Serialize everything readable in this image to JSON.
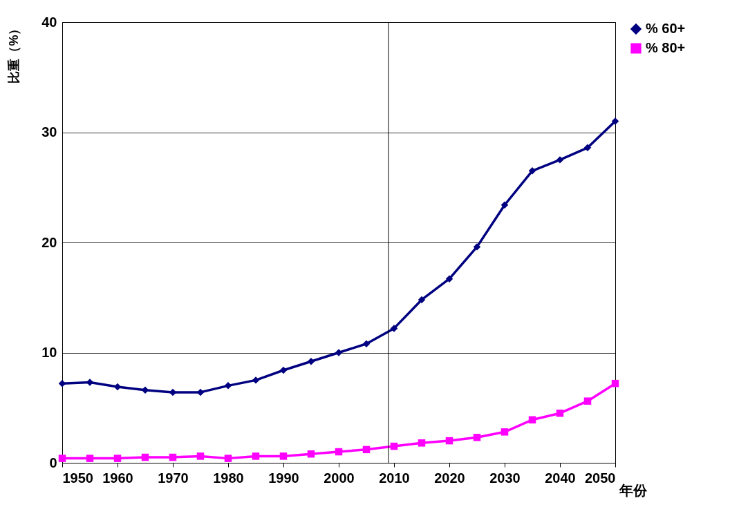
{
  "chart_data": {
    "type": "line",
    "xlabel": "年份",
    "ylabel": "比重（%）",
    "x": [
      1950,
      1955,
      1960,
      1965,
      1970,
      1975,
      1980,
      1985,
      1990,
      1995,
      2000,
      2005,
      2010,
      2015,
      2020,
      2025,
      2030,
      2035,
      2040,
      2045,
      2050
    ],
    "xlim": [
      1950,
      2050
    ],
    "xticks": [
      1950,
      1960,
      1970,
      1980,
      1990,
      2000,
      2010,
      2020,
      2030,
      2040,
      2050
    ],
    "ylim": [
      0,
      40
    ],
    "yticks": [
      0,
      10,
      20,
      30,
      40
    ],
    "grid": "y",
    "legend": "right",
    "series": [
      {
        "name": "% 60+",
        "color": "#000080",
        "marker": "diamond",
        "values": [
          7.2,
          7.3,
          6.9,
          6.6,
          6.4,
          6.4,
          7.0,
          7.5,
          8.4,
          9.2,
          10.0,
          10.8,
          12.2,
          14.8,
          16.7,
          19.6,
          23.4,
          26.5,
          27.5,
          28.6,
          31.0
        ]
      },
      {
        "name": "% 80+",
        "color": "#ff00ff",
        "marker": "square",
        "values": [
          0.4,
          0.4,
          0.4,
          0.5,
          0.5,
          0.6,
          0.4,
          0.6,
          0.6,
          0.8,
          1.0,
          1.2,
          1.5,
          1.8,
          2.0,
          2.3,
          2.8,
          3.9,
          4.5,
          5.6,
          7.2
        ]
      }
    ],
    "ref_lines": [
      {
        "axis": "x",
        "value": 2009,
        "color": "#000000"
      }
    ]
  }
}
